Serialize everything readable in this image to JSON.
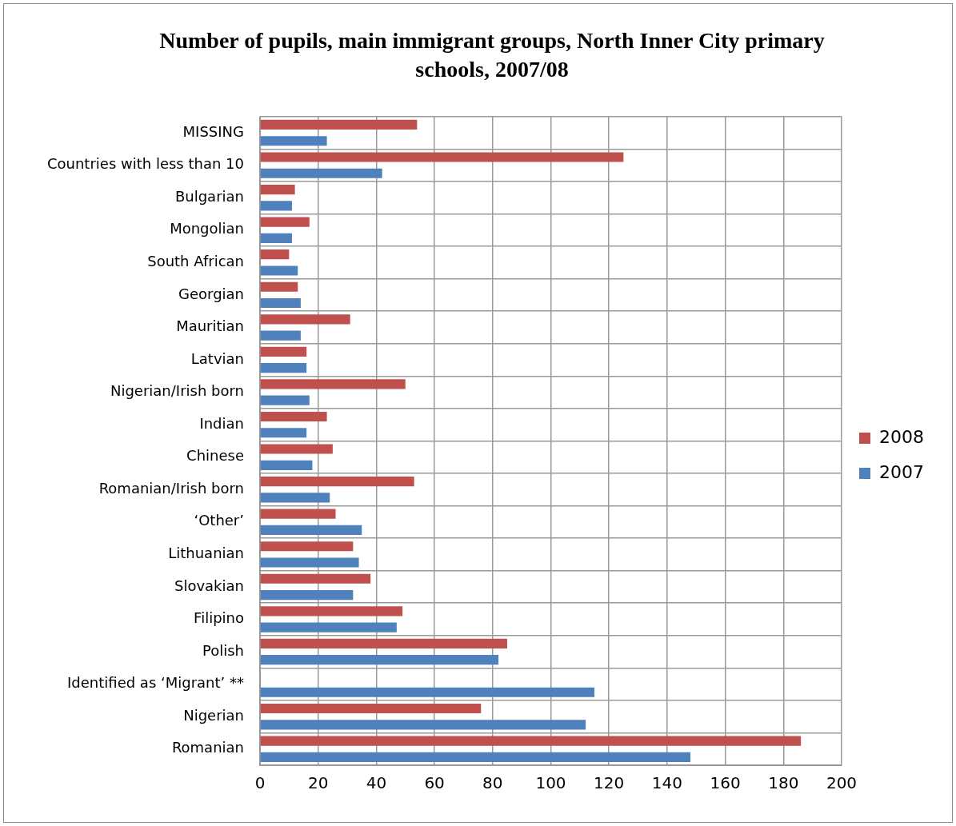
{
  "chart_data": {
    "type": "bar",
    "orientation": "horizontal",
    "title": "Number of pupils, main immigrant groups, North Inner City primary schools, 2007/08",
    "categories": [
      "MISSING",
      "Countries with less than 10",
      "Bulgarian",
      "Mongolian",
      "South African",
      "Georgian",
      "Mauritian",
      "Latvian",
      "Nigerian/Irish born",
      "Indian",
      "Chinese",
      "Romanian/Irish born",
      "‘Other’",
      "Lithuanian",
      "Slovakian",
      "Filipino",
      "Polish",
      "Identified as ‘Migrant’ **",
      "Nigerian",
      "Romanian"
    ],
    "series": [
      {
        "name": "2008",
        "color": "#c0504d",
        "values": [
          54,
          125,
          12,
          17,
          10,
          13,
          31,
          16,
          50,
          23,
          25,
          53,
          26,
          32,
          38,
          49,
          85,
          null,
          76,
          186
        ]
      },
      {
        "name": "2007",
        "color": "#4f81bd",
        "values": [
          23,
          42,
          11,
          11,
          13,
          14,
          14,
          16,
          17,
          16,
          18,
          24,
          35,
          34,
          32,
          47,
          82,
          115,
          112,
          148
        ]
      }
    ],
    "xlim": [
      0,
      200
    ],
    "xticks": [
      0,
      20,
      40,
      60,
      80,
      100,
      120,
      140,
      160,
      180,
      200
    ],
    "grid": true,
    "legend": "right"
  }
}
